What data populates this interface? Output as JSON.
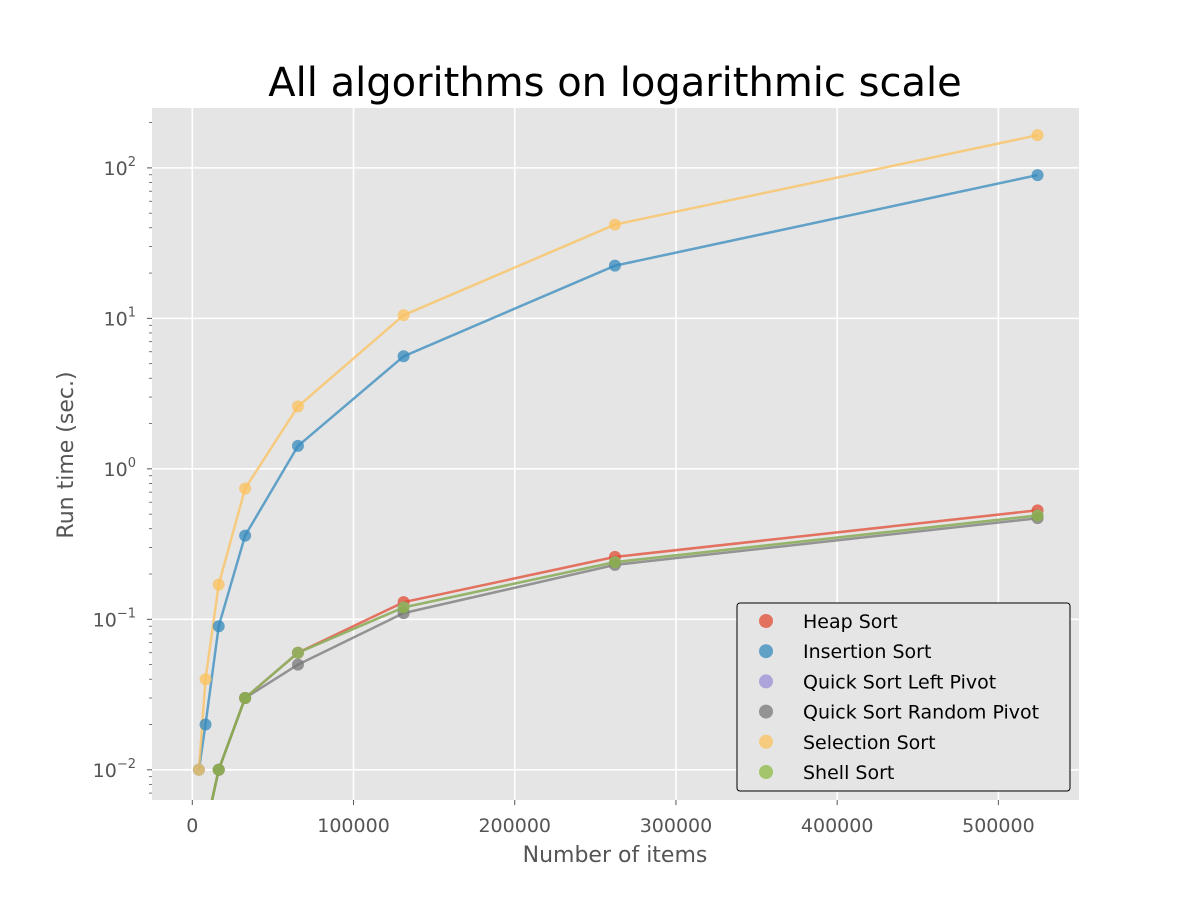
{
  "chart_data": {
    "type": "line",
    "title": "All algorithms on logarithmic scale",
    "xlabel": "Number of items",
    "ylabel": "Run time (sec.)",
    "xscale": "linear",
    "yscale": "log",
    "xlim": [
      -25000,
      550000
    ],
    "ylim": [
      0.0063,
      250
    ],
    "xticks": [
      0,
      100000,
      200000,
      300000,
      400000,
      500000
    ],
    "xtick_labels": [
      "0",
      "100000",
      "200000",
      "300000",
      "400000",
      "500000"
    ],
    "yticks": [
      0.01,
      0.1,
      1,
      10,
      100
    ],
    "ytick_labels": [
      {
        "base": "10",
        "exp": "−2"
      },
      {
        "base": "10",
        "exp": "−1"
      },
      {
        "base": "10",
        "exp": "0"
      },
      {
        "base": "10",
        "exp": "1"
      },
      {
        "base": "10",
        "exp": "2"
      }
    ],
    "grid": true,
    "style": "ggplot",
    "legend_position": "lower-right",
    "series": [
      {
        "name": "Heap Sort",
        "color": "#E24A33",
        "x": [
          4096,
          8192,
          16384,
          32768,
          65536,
          131072,
          262144,
          524288
        ],
        "values": [
          0,
          0,
          0.01,
          0.03,
          0.06,
          0.13,
          0.26,
          0.53
        ]
      },
      {
        "name": "Insertion Sort",
        "color": "#348ABD",
        "x": [
          4096,
          8192,
          16384,
          32768,
          65536,
          131072,
          262144,
          524288
        ],
        "values": [
          0.01,
          0.02,
          0.09,
          0.36,
          1.42,
          5.6,
          22.4,
          89.5
        ]
      },
      {
        "name": "Quick Sort Left Pivot",
        "color": "#988ED5",
        "x": [
          4096,
          8192,
          16384,
          32768,
          65536,
          131072,
          262144,
          524288
        ],
        "values": [
          0,
          0,
          0.01,
          0.03,
          0.06,
          0.12,
          0.24,
          0.49
        ]
      },
      {
        "name": "Quick Sort Random Pivot",
        "color": "#777777",
        "x": [
          4096,
          8192,
          16384,
          32768,
          65536,
          131072,
          262144,
          524288
        ],
        "values": [
          0,
          0,
          0.01,
          0.03,
          0.05,
          0.11,
          0.23,
          0.47
        ]
      },
      {
        "name": "Selection Sort",
        "color": "#FBC15E",
        "x": [
          4096,
          8192,
          16384,
          32768,
          65536,
          131072,
          262144,
          524288
        ],
        "values": [
          0.01,
          0.04,
          0.17,
          0.74,
          2.6,
          10.5,
          42,
          165
        ]
      },
      {
        "name": "Shell Sort",
        "color": "#8EBA42",
        "x": [
          4096,
          8192,
          16384,
          32768,
          65536,
          131072,
          262144,
          524288
        ],
        "values": [
          0,
          0,
          0.01,
          0.03,
          0.06,
          0.12,
          0.24,
          0.49
        ]
      }
    ]
  }
}
